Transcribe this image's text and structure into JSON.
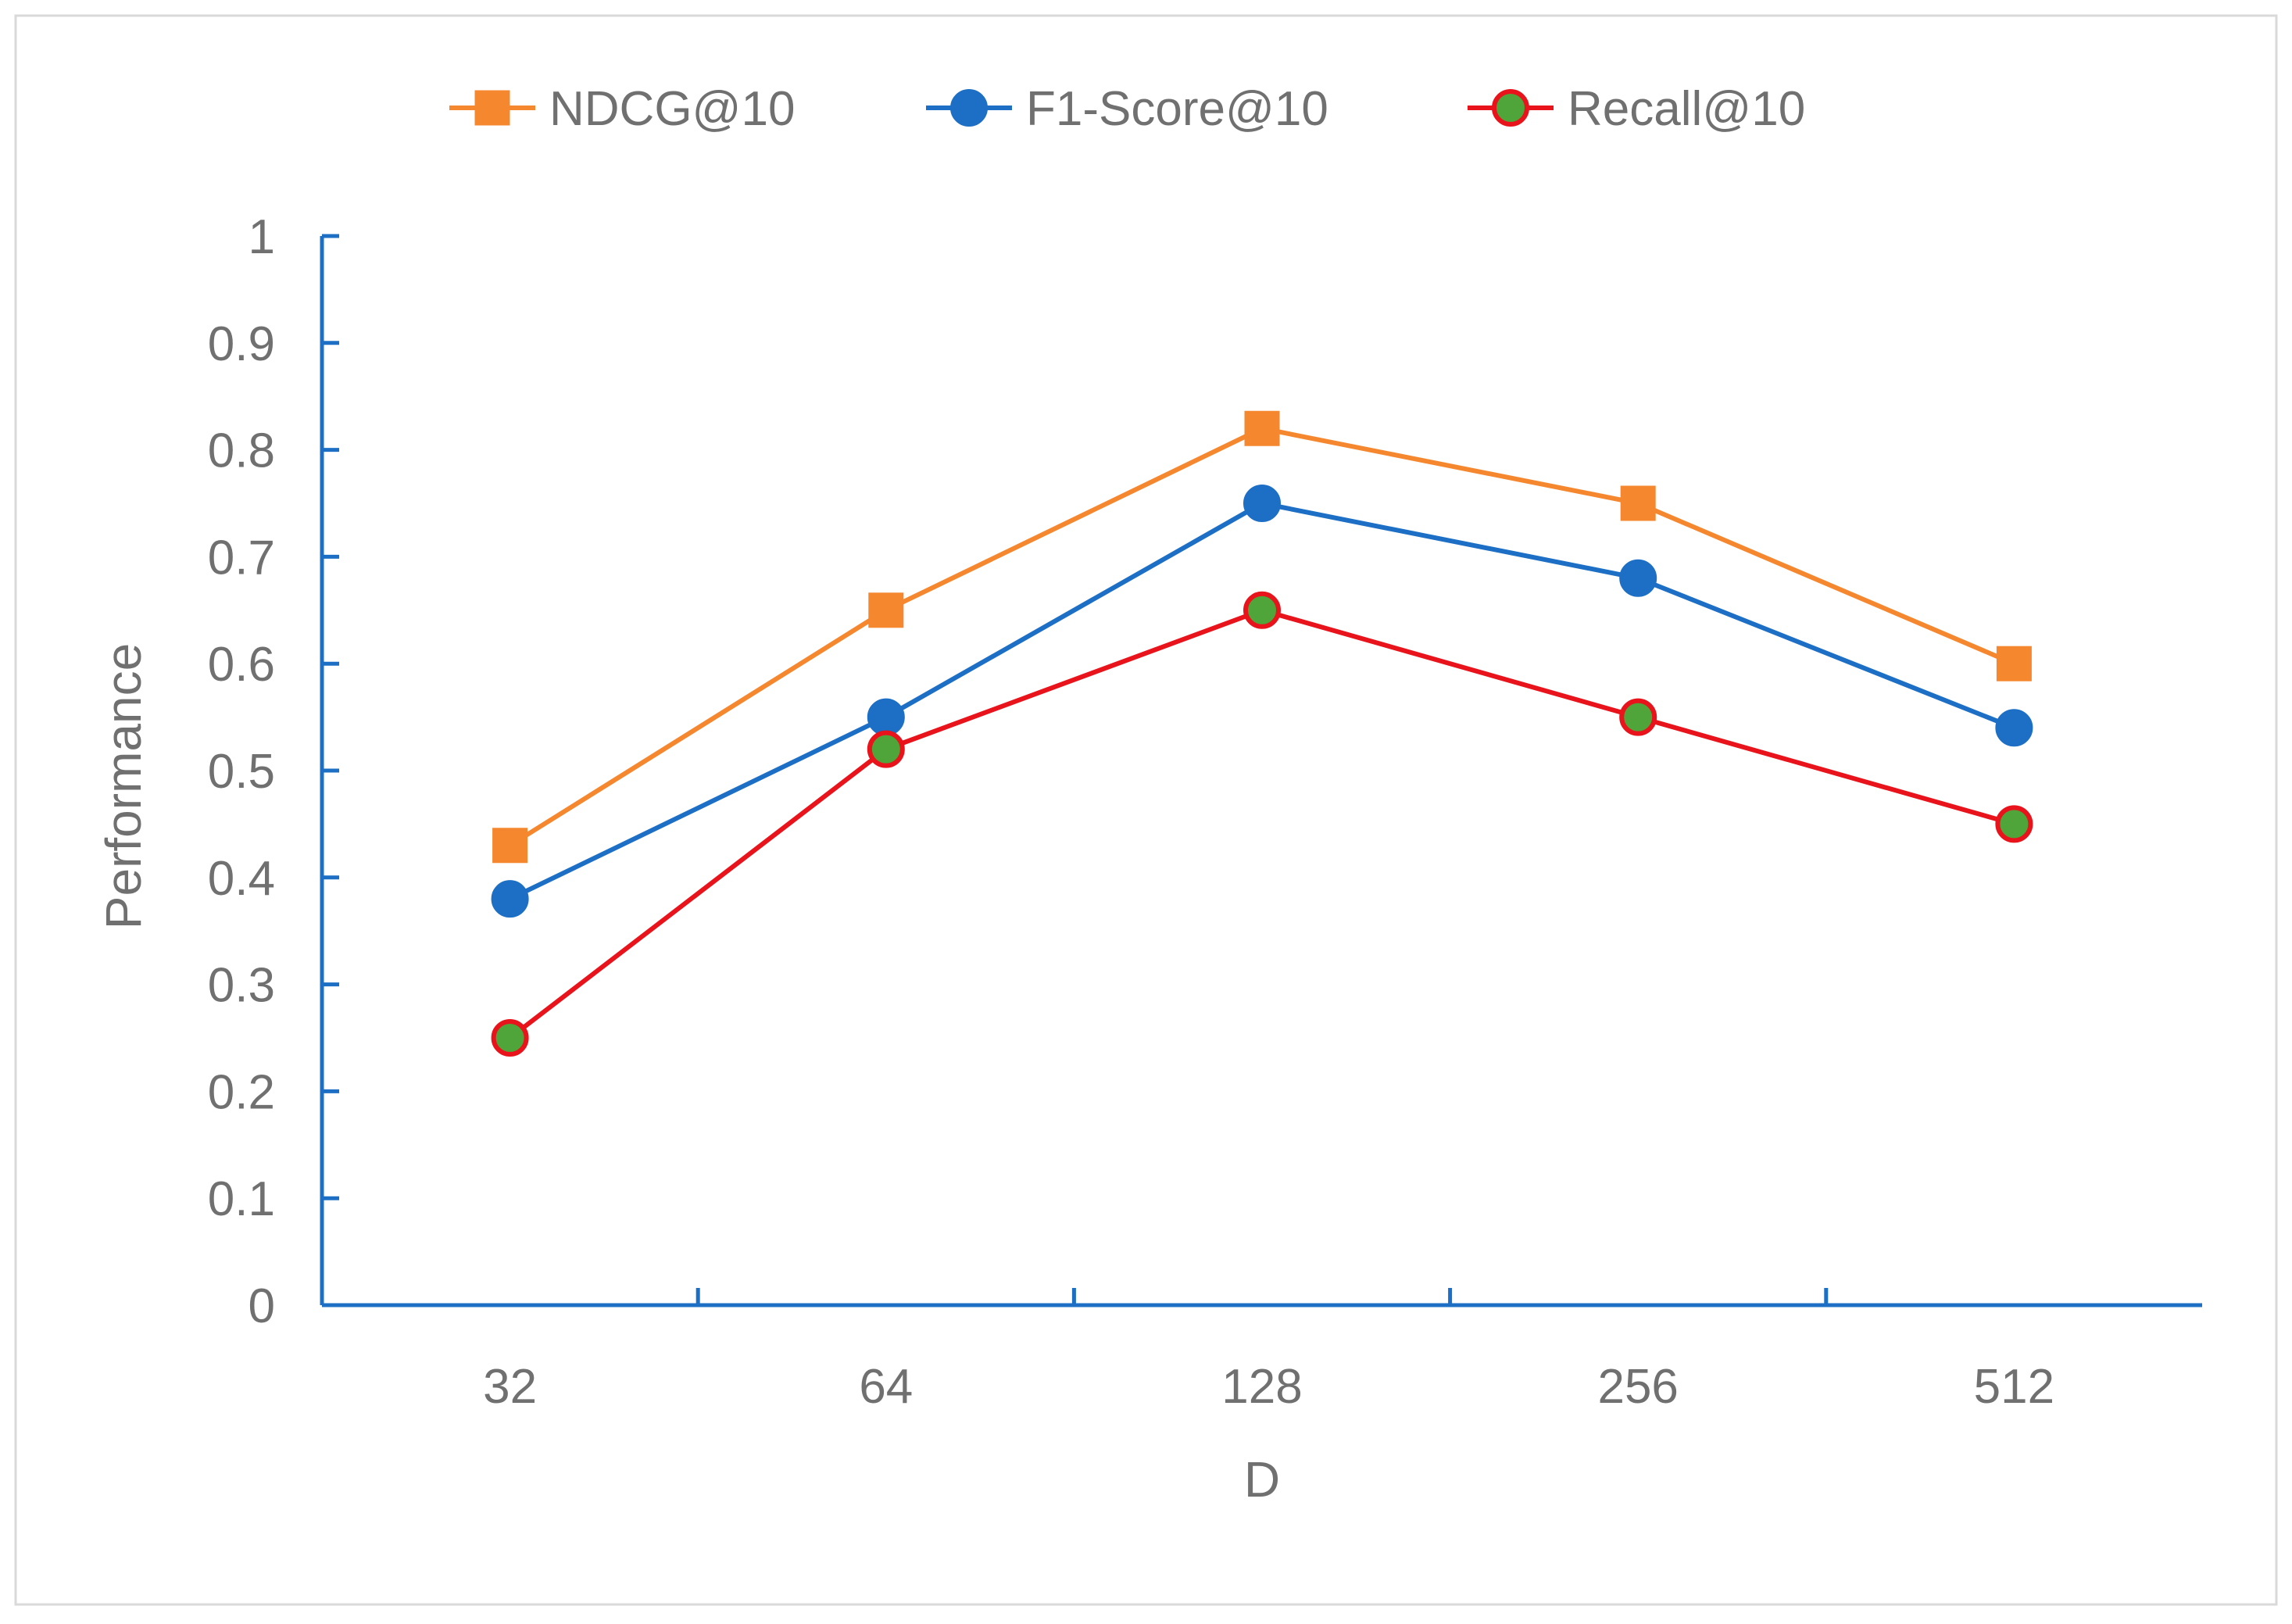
{
  "chart_data": {
    "type": "line",
    "title": "",
    "xlabel": "D",
    "ylabel": "Performance",
    "categories": [
      "32",
      "64",
      "128",
      "256",
      "512"
    ],
    "ylim": [
      0,
      1
    ],
    "yticks": [
      "0",
      "0.1",
      "0.2",
      "0.3",
      "0.4",
      "0.5",
      "0.6",
      "0.7",
      "0.8",
      "0.9",
      "1"
    ],
    "grid": false,
    "legend_position": "top-center",
    "series": [
      {
        "name": "NDCG@10",
        "values": [
          0.43,
          0.65,
          0.82,
          0.75,
          0.6
        ],
        "color": "#F5872F",
        "marker": "square",
        "marker_fill": "#F5872F",
        "marker_edge": "#F5872F"
      },
      {
        "name": "F1-Score@10",
        "values": [
          0.38,
          0.55,
          0.75,
          0.68,
          0.54
        ],
        "color": "#1C6FC4",
        "marker": "circle",
        "marker_fill": "#1C6FC4",
        "marker_edge": "#1C6FC4"
      },
      {
        "name": "Recall@10",
        "values": [
          0.25,
          0.52,
          0.65,
          0.55,
          0.45
        ],
        "color": "#E8131B",
        "marker": "circle",
        "marker_fill": "#4FA43A",
        "marker_edge": "#E8131B"
      }
    ],
    "axis_color": "#1C6FC4"
  }
}
